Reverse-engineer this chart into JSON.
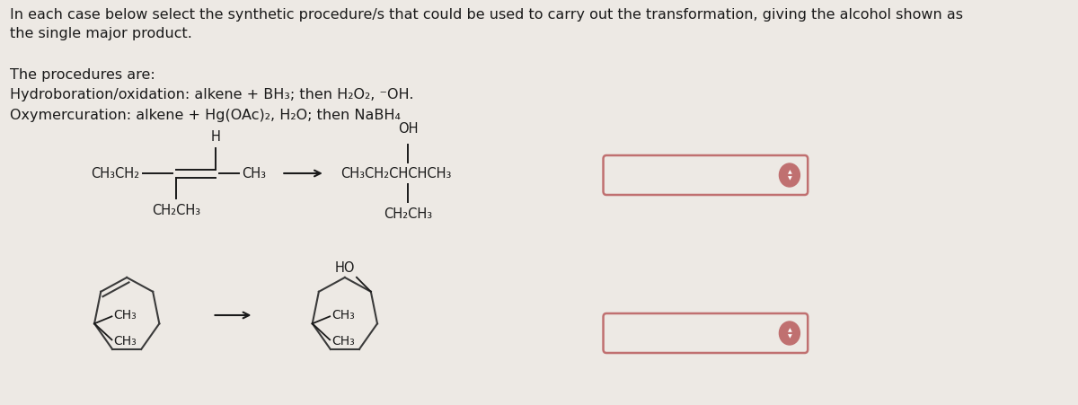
{
  "bg_color": "#ede9e4",
  "text_color": "#1a1a1a",
  "header_text": "In each case below select the synthetic procedure/s that could be used to carry out the transformation, giving the alcohol shown as\nthe single major product.",
  "procedures_title": "The procedures are:",
  "procedure1": "Hydroboration/oxidation: alkene + BH₃; then H₂O₂, ⁻OH.",
  "procedure2": "Oxymercuration: alkene + Hg(OAc)₂, H₂O; then NaBH₄",
  "font_size_header": 11.5,
  "font_size_body": 11.5,
  "font_size_chem": 10.5,
  "dropdown_border": "#c07070",
  "dropdown_bg": "#ede9e4",
  "arrow_color": "#1a1a1a",
  "ring_color": "#3a3a3a"
}
